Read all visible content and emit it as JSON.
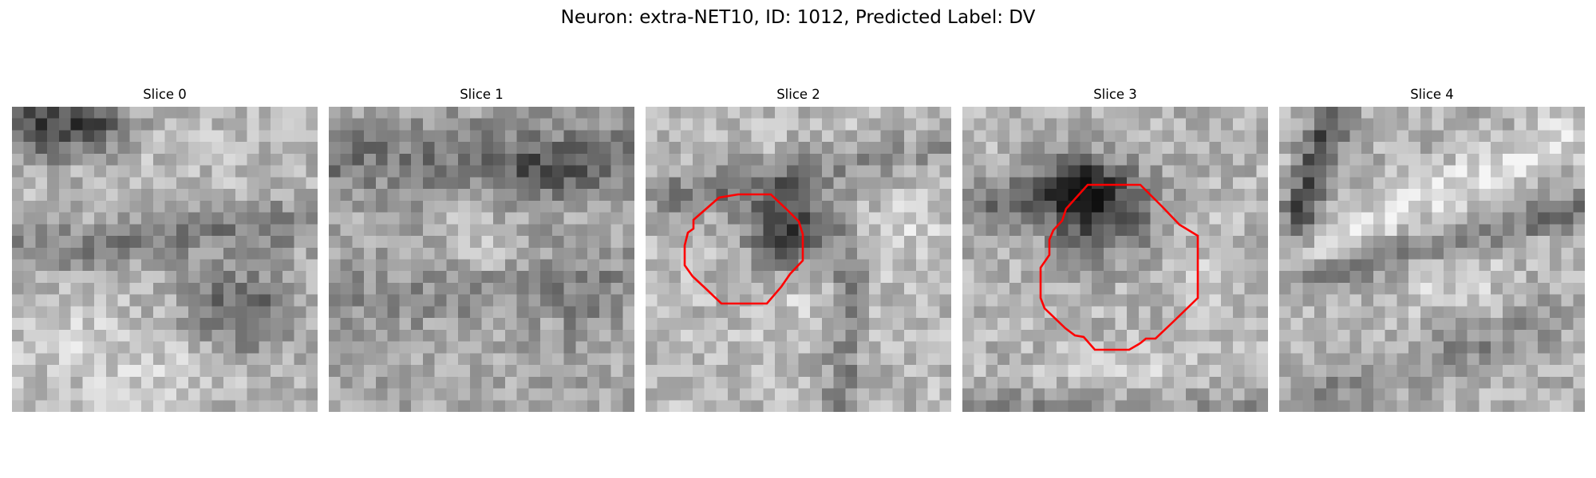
{
  "figure": {
    "title": "Neuron: extra-NET10, ID: 1012, Predicted Label: DV",
    "colormap": "gray",
    "overlay_color": "#ff0000"
  },
  "panels": [
    {
      "title": "Slice 0",
      "roi_visible": false
    },
    {
      "title": "Slice 1",
      "roi_visible": false
    },
    {
      "title": "Slice 2",
      "roi_visible": true
    },
    {
      "title": "Slice 3",
      "roi_visible": true
    },
    {
      "title": "Slice 4",
      "roi_visible": false
    }
  ]
}
